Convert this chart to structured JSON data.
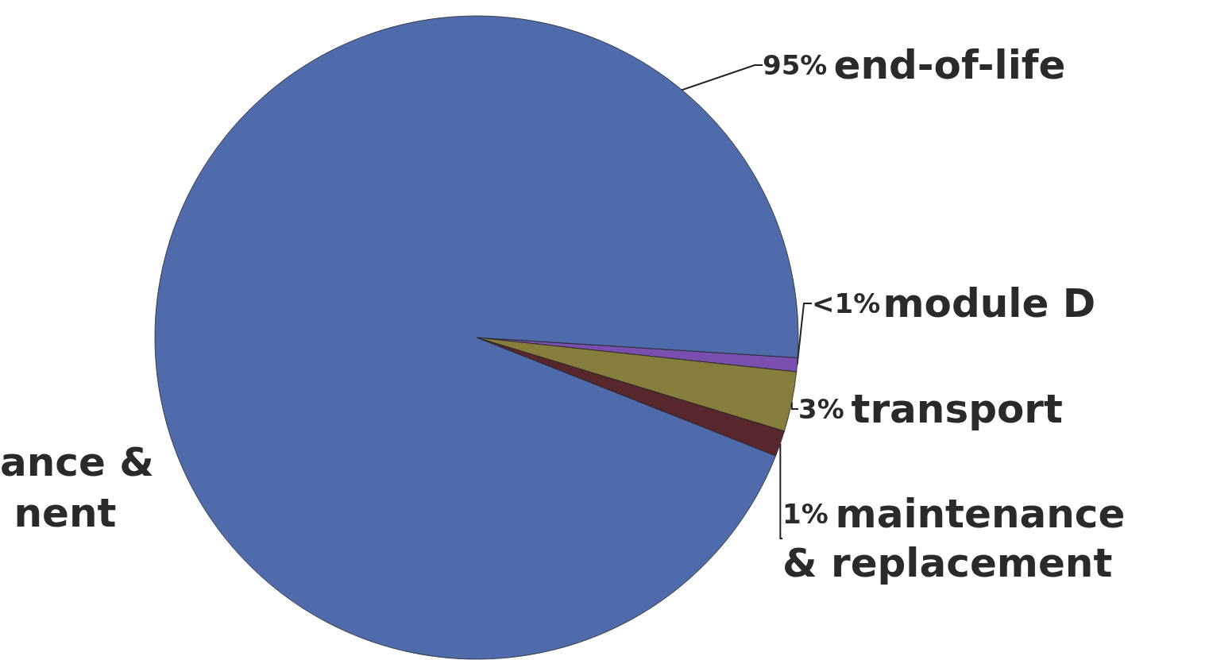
{
  "chart_data": {
    "type": "pie",
    "categories": [
      "module D",
      "transport",
      "maintenance & replacement",
      "end-of-life"
    ],
    "values": [
      0.7,
      3,
      1.3,
      95
    ],
    "value_labels": [
      "<1%",
      "3%",
      "1%",
      "95%"
    ],
    "colors": [
      "#7a4fb0",
      "#857e3c",
      "#58262d",
      "#4f6bab"
    ],
    "annotations": [
      "ance & nent"
    ],
    "legend": false
  }
}
